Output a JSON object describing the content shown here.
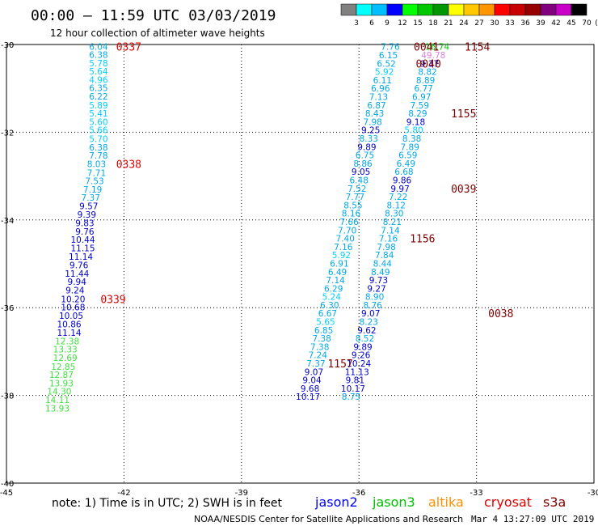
{
  "header": {
    "title": "00:00 — 11:59 UTC 03/03/2019",
    "subtitle": "12 hour collection of altimeter wave heights"
  },
  "colorbar": {
    "labels": [
      "3",
      "6",
      "9",
      "12",
      "15",
      "18",
      "21",
      "24",
      "27",
      "30",
      "33",
      "36",
      "39",
      "42",
      "45",
      "70",
      "(ft)"
    ],
    "colors": [
      "#808080",
      "#00ffff",
      "#00bfff",
      "#0000ff",
      "#00ff00",
      "#00c800",
      "#009600",
      "#ffff00",
      "#ffc800",
      "#ff9600",
      "#ff0000",
      "#c80000",
      "#960000",
      "#800080",
      "#c800c8",
      "#000000"
    ]
  },
  "footer": {
    "note": "note: 1) Time is in UTC; 2) SWH is in feet",
    "credit": "NOAA/NESDIS Center for Satellite Applications and Research",
    "timestamp": "Mar  4 13:27:09 UTC 2019",
    "legend": [
      {
        "name": "jason2",
        "color": "#0000ff"
      },
      {
        "name": "jason3",
        "color": "#00c000"
      },
      {
        "name": "altika",
        "color": "#ff9000"
      },
      {
        "name": "cryosat",
        "color": "#e00000"
      },
      {
        "name": "s3a",
        "color": "#800000"
      }
    ]
  },
  "chart_data": {
    "type": "scatter",
    "xlim": [
      -45,
      -30
    ],
    "ylim": [
      -40,
      -30
    ],
    "x_ticks": [
      "-45",
      "-42",
      "-39",
      "-36",
      "-33",
      "-30"
    ],
    "y_ticks": [
      "-30",
      "-32",
      "-34",
      "-36",
      "-38",
      "-40"
    ],
    "grid": true,
    "series": [
      {
        "name": "cryosat",
        "color": "#e00000",
        "points": [
          {
            "x": -42.65,
            "y": -30.05,
            "v": "6.04"
          },
          {
            "x": -42.65,
            "y": -30.23,
            "v": "6.38"
          },
          {
            "x": -42.65,
            "y": -30.42,
            "v": "5.78"
          },
          {
            "x": -42.65,
            "y": -30.61,
            "v": "5.64"
          },
          {
            "x": -42.65,
            "y": -30.8,
            "v": "4.96"
          },
          {
            "x": -42.65,
            "y": -30.99,
            "v": "6.35"
          },
          {
            "x": -42.65,
            "y": -31.18,
            "v": "6.22"
          },
          {
            "x": -42.65,
            "y": -31.38,
            "v": "5.89"
          },
          {
            "x": -42.65,
            "y": -31.57,
            "v": "5.41"
          },
          {
            "x": -42.65,
            "y": -31.76,
            "v": "5.60"
          },
          {
            "x": -42.65,
            "y": -31.95,
            "v": "5.66"
          },
          {
            "x": -42.65,
            "y": -32.15,
            "v": "5.70"
          },
          {
            "x": -42.65,
            "y": -32.34,
            "v": "6.38"
          },
          {
            "x": -42.65,
            "y": -32.53,
            "v": "7.78"
          },
          {
            "x": -42.7,
            "y": -32.72,
            "v": "8.03"
          },
          {
            "x": -42.7,
            "y": -32.92,
            "v": "7.71"
          },
          {
            "x": -42.75,
            "y": -33.11,
            "v": "7.53"
          },
          {
            "x": -42.8,
            "y": -33.3,
            "v": "7.19"
          },
          {
            "x": -42.85,
            "y": -33.49,
            "v": "7.37"
          },
          {
            "x": -42.9,
            "y": -33.68,
            "v": "9.57"
          },
          {
            "x": -42.95,
            "y": -33.87,
            "v": "9.39"
          },
          {
            "x": -43.0,
            "y": -34.07,
            "v": "9.83"
          },
          {
            "x": -43.0,
            "y": -34.26,
            "v": "9.76"
          },
          {
            "x": -43.05,
            "y": -34.45,
            "v": "10.44"
          },
          {
            "x": -43.05,
            "y": -34.64,
            "v": "11.15"
          },
          {
            "x": -43.1,
            "y": -34.83,
            "v": "11.14"
          },
          {
            "x": -43.15,
            "y": -35.03,
            "v": "9.76"
          },
          {
            "x": -43.2,
            "y": -35.22,
            "v": "11.44"
          },
          {
            "x": -43.2,
            "y": -35.41,
            "v": "9.94"
          },
          {
            "x": -43.25,
            "y": -35.6,
            "v": "9.24"
          },
          {
            "x": -43.3,
            "y": -35.8,
            "v": "10.20"
          },
          {
            "x": -43.3,
            "y": -35.99,
            "v": "10.68"
          },
          {
            "x": -43.35,
            "y": -36.18,
            "v": "10.05"
          },
          {
            "x": -43.4,
            "y": -36.37,
            "v": "10.86"
          },
          {
            "x": -43.4,
            "y": -36.57,
            "v": "11.14"
          },
          {
            "x": -43.45,
            "y": -36.76,
            "v": "12.38"
          },
          {
            "x": -43.5,
            "y": -36.95,
            "v": "13.33"
          },
          {
            "x": -43.5,
            "y": -37.14,
            "v": "12.69"
          },
          {
            "x": -43.55,
            "y": -37.34,
            "v": "12.85"
          },
          {
            "x": -43.6,
            "y": -37.53,
            "v": "12.87"
          },
          {
            "x": -43.6,
            "y": -37.72,
            "v": "13.93"
          },
          {
            "x": -43.65,
            "y": -37.91,
            "v": "14.30"
          },
          {
            "x": -43.7,
            "y": -38.1,
            "v": "14.11"
          },
          {
            "x": -43.7,
            "y": -38.29,
            "v": "13.93"
          }
        ]
      },
      {
        "name": "s3a",
        "color": "#800000",
        "points": [
          {
            "x": -35.2,
            "y": -30.05,
            "v": "7.76"
          },
          {
            "x": -35.25,
            "y": -30.24,
            "v": "6.15"
          },
          {
            "x": -35.3,
            "y": -30.43,
            "v": "6.52"
          },
          {
            "x": -35.35,
            "y": -30.62,
            "v": "5.92"
          },
          {
            "x": -35.4,
            "y": -30.81,
            "v": "6.11"
          },
          {
            "x": -35.45,
            "y": -31.0,
            "v": "6.96"
          },
          {
            "x": -35.5,
            "y": -31.19,
            "v": "7.13"
          },
          {
            "x": -35.55,
            "y": -31.38,
            "v": "6.87"
          },
          {
            "x": -35.6,
            "y": -31.57,
            "v": "8.43"
          },
          {
            "x": -35.65,
            "y": -31.76,
            "v": "7.98"
          },
          {
            "x": -35.7,
            "y": -31.95,
            "v": "9.25"
          },
          {
            "x": -35.75,
            "y": -32.14,
            "v": "8.33"
          },
          {
            "x": -35.8,
            "y": -32.33,
            "v": "9.89"
          },
          {
            "x": -35.85,
            "y": -32.52,
            "v": "6.75"
          },
          {
            "x": -35.9,
            "y": -32.71,
            "v": "8.86"
          },
          {
            "x": -35.95,
            "y": -32.9,
            "v": "9.05"
          },
          {
            "x": -36.0,
            "y": -33.09,
            "v": "6.48"
          },
          {
            "x": -36.05,
            "y": -33.28,
            "v": "7.52"
          },
          {
            "x": -36.1,
            "y": -33.47,
            "v": "7.77"
          },
          {
            "x": -36.15,
            "y": -33.66,
            "v": "8.55"
          },
          {
            "x": -36.2,
            "y": -33.85,
            "v": "8.16"
          },
          {
            "x": -36.25,
            "y": -34.04,
            "v": "7.66"
          },
          {
            "x": -36.3,
            "y": -34.23,
            "v": "7.70"
          },
          {
            "x": -36.35,
            "y": -34.42,
            "v": "7.40"
          },
          {
            "x": -36.4,
            "y": -34.61,
            "v": "7.16"
          },
          {
            "x": -36.45,
            "y": -34.8,
            "v": "5.92"
          },
          {
            "x": -36.5,
            "y": -34.99,
            "v": "6.91"
          },
          {
            "x": -36.55,
            "y": -35.18,
            "v": "6.49"
          },
          {
            "x": -36.6,
            "y": -35.37,
            "v": "7.14"
          },
          {
            "x": -36.65,
            "y": -35.56,
            "v": "6.29"
          },
          {
            "x": -36.7,
            "y": -35.75,
            "v": "5.24"
          },
          {
            "x": -36.75,
            "y": -35.94,
            "v": "6.30"
          },
          {
            "x": -36.8,
            "y": -36.13,
            "v": "6.67"
          },
          {
            "x": -36.85,
            "y": -36.32,
            "v": "5.65"
          },
          {
            "x": -36.9,
            "y": -36.51,
            "v": "6.85"
          },
          {
            "x": -36.95,
            "y": -36.7,
            "v": "7.38"
          },
          {
            "x": -37.0,
            "y": -36.89,
            "v": "7.38"
          },
          {
            "x": -37.05,
            "y": -37.08,
            "v": "7.24"
          },
          {
            "x": -37.1,
            "y": -37.27,
            "v": "7.37"
          },
          {
            "x": -37.15,
            "y": -37.46,
            "v": "9.07"
          },
          {
            "x": -37.2,
            "y": -37.65,
            "v": "9.04"
          },
          {
            "x": -37.25,
            "y": -37.84,
            "v": "9.68"
          },
          {
            "x": -37.3,
            "y": -38.03,
            "v": "10.17"
          }
        ]
      },
      {
        "name": "jason2",
        "color": "#0000ff",
        "points": [
          {
            "x": -34.0,
            "y": -30.05,
            "v": "16.74"
          },
          {
            "x": -34.1,
            "y": -30.24,
            "v": "49.78"
          },
          {
            "x": -34.2,
            "y": -30.43,
            "v": "9.37"
          },
          {
            "x": -34.25,
            "y": -30.62,
            "v": "8.82"
          },
          {
            "x": -34.3,
            "y": -30.81,
            "v": "8.89"
          },
          {
            "x": -34.35,
            "y": -31.0,
            "v": "6.77"
          },
          {
            "x": -34.4,
            "y": -31.19,
            "v": "6.97"
          },
          {
            "x": -34.45,
            "y": -31.38,
            "v": "7.59"
          },
          {
            "x": -34.5,
            "y": -31.57,
            "v": "8.29"
          },
          {
            "x": -34.55,
            "y": -31.76,
            "v": "9.18"
          },
          {
            "x": -34.6,
            "y": -31.95,
            "v": "5.80"
          },
          {
            "x": -34.65,
            "y": -32.14,
            "v": "8.38"
          },
          {
            "x": -34.7,
            "y": -32.33,
            "v": "7.89"
          },
          {
            "x": -34.75,
            "y": -32.52,
            "v": "6.59"
          },
          {
            "x": -34.8,
            "y": -32.71,
            "v": "6.49"
          },
          {
            "x": -34.85,
            "y": -32.9,
            "v": "6.68"
          },
          {
            "x": -34.9,
            "y": -33.09,
            "v": "9.86"
          },
          {
            "x": -34.95,
            "y": -33.28,
            "v": "9.97"
          },
          {
            "x": -35.0,
            "y": -33.47,
            "v": "7.22"
          },
          {
            "x": -35.05,
            "y": -33.66,
            "v": "8.12"
          },
          {
            "x": -35.1,
            "y": -33.85,
            "v": "8.30"
          },
          {
            "x": -35.15,
            "y": -34.04,
            "v": "8.21"
          },
          {
            "x": -35.2,
            "y": -34.23,
            "v": "7.14"
          },
          {
            "x": -35.25,
            "y": -34.42,
            "v": "7.16"
          },
          {
            "x": -35.3,
            "y": -34.61,
            "v": "7.98"
          },
          {
            "x": -35.35,
            "y": -34.8,
            "v": "7.84"
          },
          {
            "x": -35.4,
            "y": -34.99,
            "v": "8.44"
          },
          {
            "x": -35.45,
            "y": -35.18,
            "v": "8.49"
          },
          {
            "x": -35.5,
            "y": -35.37,
            "v": "9.73"
          },
          {
            "x": -35.55,
            "y": -35.56,
            "v": "9.27"
          },
          {
            "x": -35.6,
            "y": -35.75,
            "v": "8.90"
          },
          {
            "x": -35.65,
            "y": -35.94,
            "v": "8.76"
          },
          {
            "x": -35.7,
            "y": -36.13,
            "v": "9.07"
          },
          {
            "x": -35.75,
            "y": -36.32,
            "v": "8.23"
          },
          {
            "x": -35.8,
            "y": -36.51,
            "v": "9.62"
          },
          {
            "x": -35.85,
            "y": -36.7,
            "v": "8.52"
          },
          {
            "x": -35.9,
            "y": -36.89,
            "v": "9.89"
          },
          {
            "x": -35.95,
            "y": -37.08,
            "v": "9.26"
          },
          {
            "x": -36.0,
            "y": -37.27,
            "v": "10.24"
          },
          {
            "x": -36.05,
            "y": -37.46,
            "v": "11.13"
          },
          {
            "x": -36.1,
            "y": -37.65,
            "v": "9.81"
          },
          {
            "x": -36.15,
            "y": -37.84,
            "v": "10.17"
          },
          {
            "x": -36.2,
            "y": -38.03,
            "v": "8.75"
          }
        ]
      }
    ],
    "time_labels": [
      {
        "x": -42.2,
        "y": -30.05,
        "t": "0337",
        "color": "#e00000"
      },
      {
        "x": -42.2,
        "y": -32.72,
        "t": "0338",
        "color": "#e00000"
      },
      {
        "x": -42.6,
        "y": -35.8,
        "t": "0339",
        "color": "#e00000"
      },
      {
        "x": -34.6,
        "y": -30.05,
        "t": "0041",
        "color": "#800000"
      },
      {
        "x": -34.55,
        "y": -30.43,
        "t": "0040",
        "color": "#800000"
      },
      {
        "x": -33.3,
        "y": -30.05,
        "t": "1154",
        "color": "#800000"
      },
      {
        "x": -33.65,
        "y": -31.57,
        "t": "1155",
        "color": "#800000"
      },
      {
        "x": -33.65,
        "y": -33.28,
        "t": "0039",
        "color": "#800000"
      },
      {
        "x": -34.7,
        "y": -34.42,
        "t": "1156",
        "color": "#800000"
      },
      {
        "x": -32.7,
        "y": -36.13,
        "t": "0038",
        "color": "#800000"
      },
      {
        "x": -36.8,
        "y": -37.27,
        "t": "1157",
        "color": "#800000"
      }
    ]
  }
}
